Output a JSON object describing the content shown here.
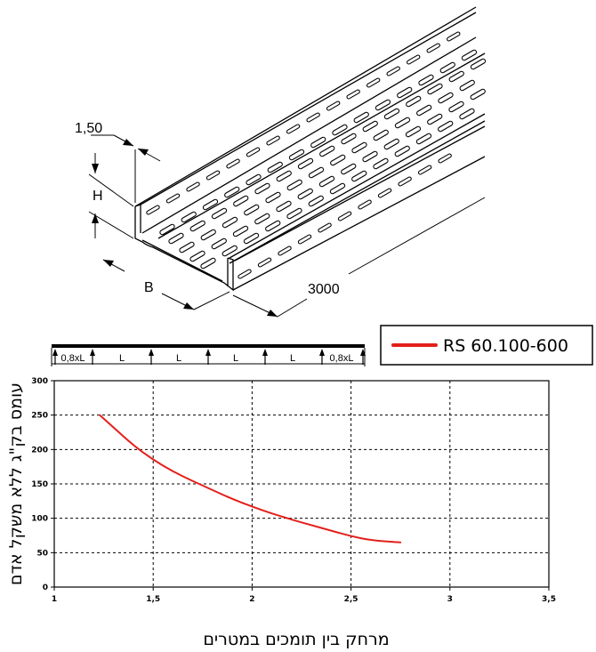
{
  "drawing": {
    "dim_thickness": "1,50",
    "dim_height": "H",
    "dim_width": "B",
    "dim_length": "3000"
  },
  "beam": {
    "span_labels": [
      "0,8xL",
      "L",
      "L",
      "L",
      "L",
      "0,8xL"
    ]
  },
  "legend": {
    "label": "RS 60.100-600",
    "color": "#e3201b"
  },
  "chart_data": {
    "type": "line",
    "title": "",
    "xlabel": "מרחק בין תומכים במטרים",
    "ylabel": "עומס בק\"ג ללא משקל אדם",
    "xlim": [
      1,
      3.5
    ],
    "ylim": [
      0,
      300
    ],
    "xticks": [
      "1",
      "1,5",
      "2",
      "2,5",
      "3",
      "3,5"
    ],
    "yticks": [
      "0",
      "50",
      "100",
      "150",
      "200",
      "250",
      "300"
    ],
    "grid": true,
    "legend_position": "top-right",
    "series": [
      {
        "name": "RS 60.100-600",
        "color": "#e3201b",
        "x": [
          1.23,
          1.3,
          1.4,
          1.5,
          1.6,
          1.7,
          1.8,
          1.9,
          2.0,
          2.1,
          2.2,
          2.3,
          2.4,
          2.5,
          2.6,
          2.75
        ],
        "y": [
          250,
          232,
          206,
          185,
          168,
          154,
          141,
          128,
          117,
          107,
          98,
          90,
          82,
          74,
          68,
          65
        ]
      }
    ]
  }
}
